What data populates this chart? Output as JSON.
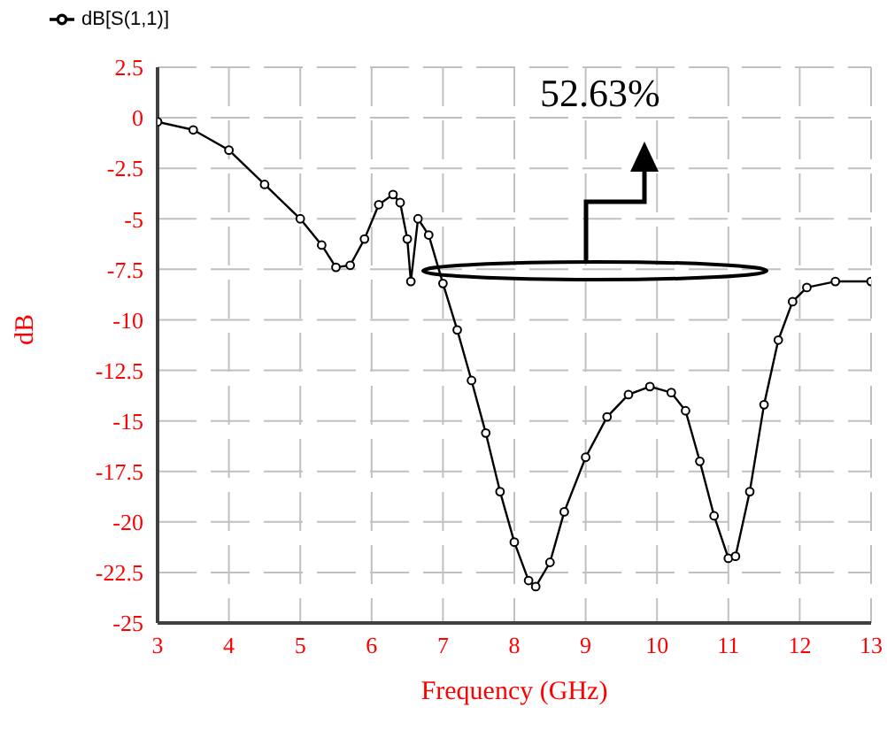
{
  "chart_data": {
    "type": "line",
    "xlabel": "Frequency (GHz)",
    "ylabel": "dB",
    "x": [
      3,
      3.5,
      4,
      4.5,
      5,
      5.3,
      5.5,
      5.7,
      5.9,
      6.1,
      6.3,
      6.4,
      6.5,
      6.55,
      6.65,
      6.8,
      7,
      7.2,
      7.4,
      7.6,
      7.8,
      8,
      8.2,
      8.3,
      8.5,
      8.7,
      9,
      9.3,
      9.6,
      9.9,
      10.2,
      10.4,
      10.6,
      10.8,
      11,
      11.1,
      11.3,
      11.5,
      11.7,
      11.9,
      12.1,
      12.5,
      13
    ],
    "series": [
      {
        "name": "dB[S(1,1)]",
        "color": "#000000",
        "values": [
          -0.2,
          -0.6,
          -1.6,
          -3.3,
          -5,
          -6.3,
          -7.4,
          -7.3,
          -6,
          -4.3,
          -3.8,
          -4.2,
          -6,
          -8.1,
          -5,
          -5.8,
          -8.2,
          -10.5,
          -13,
          -15.6,
          -18.5,
          -21,
          -22.9,
          -23.2,
          -22,
          -19.5,
          -16.8,
          -14.8,
          -13.7,
          -13.3,
          -13.6,
          -14.5,
          -17,
          -19.7,
          -21.8,
          -21.7,
          -18.5,
          -14.2,
          -11,
          -9.1,
          -8.4,
          -8.1,
          -8.1
        ]
      }
    ],
    "xlim": [
      3,
      13
    ],
    "xticks": [
      3,
      4,
      5,
      6,
      7,
      8,
      9,
      10,
      11,
      12,
      13
    ],
    "ylim": [
      -25,
      2.5
    ],
    "yticks": [
      2.5,
      0,
      -2.5,
      -5,
      -7.5,
      -10,
      -12.5,
      -15,
      -17.5,
      -20,
      -22.5,
      -25
    ],
    "grid": true,
    "legend": "top left",
    "marker": "circle",
    "line_style": "solid",
    "annotations": [
      "52.63%"
    ]
  }
}
